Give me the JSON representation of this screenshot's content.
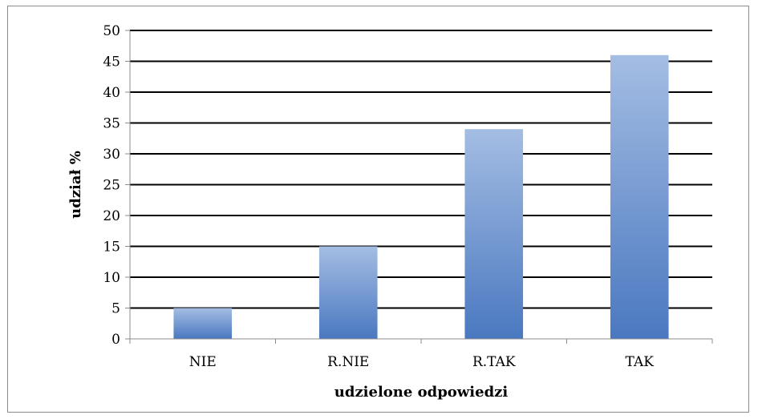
{
  "chart_data": {
    "type": "bar",
    "categories": [
      "NIE",
      "R.NIE",
      "R.TAK",
      "TAK"
    ],
    "values": [
      5,
      15,
      34,
      46
    ],
    "title": "",
    "xlabel": "udzielone odpowiedzi",
    "ylabel": "udział %",
    "ylim": [
      0,
      50
    ],
    "ytick_step": 5,
    "yticks": [
      "0",
      "5",
      "10",
      "15",
      "20",
      "25",
      "30",
      "35",
      "40",
      "45",
      "50"
    ],
    "grid": true,
    "legend": "none",
    "colors": {
      "bar_top": "#a4bde3",
      "bar_bottom": "#4a78c0",
      "gridline": "#000000",
      "axis": "#8c8c8c",
      "frame": "#8c8c8c"
    }
  }
}
